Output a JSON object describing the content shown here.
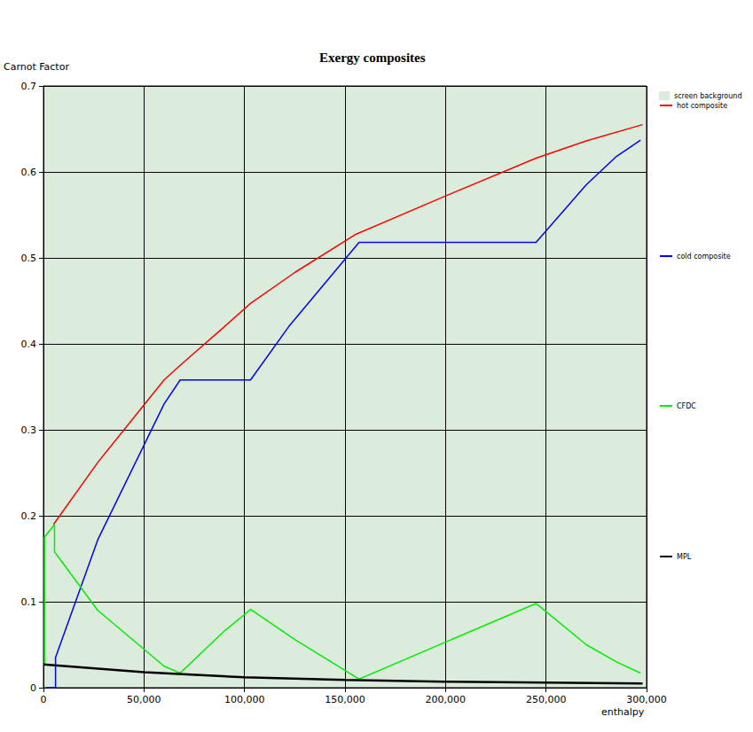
{
  "chart_data": {
    "type": "line",
    "title": "Exergy composites",
    "y_label": "Carnot Factor",
    "x_label": "enthalpy",
    "xlim": [
      0,
      300000
    ],
    "xticks": [
      0,
      {
        "value": 50000,
        "label": "50,000"
      },
      {
        "value": 100000,
        "label": "100,000"
      },
      {
        "value": 150000,
        "label": "150,000"
      },
      {
        "value": 200000,
        "label": "200,000"
      },
      {
        "value": 250000,
        "label": "250,000"
      },
      {
        "value": 300000,
        "label": "300,000"
      }
    ],
    "ylim": [
      0,
      0.7
    ],
    "yticks": [
      0,
      0.1,
      0.2,
      0.3,
      0.4,
      0.5,
      0.6,
      0.7
    ],
    "grid": true,
    "legend": "right",
    "series": [
      {
        "name": "screen background",
        "color": "#dcecdc",
        "type": "background"
      },
      {
        "name": "hot composite",
        "color": "#ff0000",
        "values": [
          [
            5000,
            0.19
          ],
          [
            27000,
            0.262
          ],
          [
            60000,
            0.358
          ],
          [
            68000,
            0.375
          ],
          [
            90000,
            0.42
          ],
          [
            103000,
            0.447
          ],
          [
            125000,
            0.483
          ],
          [
            155000,
            0.527
          ],
          [
            200000,
            0.572
          ],
          [
            245000,
            0.616
          ],
          [
            270000,
            0.636
          ],
          [
            298000,
            0.655
          ]
        ]
      },
      {
        "name": "cold composite",
        "color": "#0000ff",
        "values": [
          [
            1500,
            0
          ],
          [
            6000,
            0
          ],
          [
            6000,
            0.035
          ],
          [
            27000,
            0.172
          ],
          [
            60000,
            0.33
          ],
          [
            68000,
            0.358
          ],
          [
            103000,
            0.358
          ],
          [
            122000,
            0.42
          ],
          [
            157000,
            0.518
          ],
          [
            245000,
            0.518
          ],
          [
            270000,
            0.585
          ],
          [
            285000,
            0.618
          ],
          [
            297000,
            0.637
          ]
        ]
      },
      {
        "name": "CFDC",
        "color": "#00ee00",
        "values": [
          [
            500,
            0.027
          ],
          [
            500,
            0.175
          ],
          [
            5500,
            0.19
          ],
          [
            5500,
            0.158
          ],
          [
            27000,
            0.09
          ],
          [
            60000,
            0.025
          ],
          [
            68000,
            0.017
          ],
          [
            90000,
            0.066
          ],
          [
            103000,
            0.091
          ],
          [
            125000,
            0.056
          ],
          [
            157000,
            0.01
          ],
          [
            245000,
            0.098
          ],
          [
            270000,
            0.05
          ],
          [
            285000,
            0.03
          ],
          [
            297000,
            0.017
          ]
        ]
      },
      {
        "name": "MPL",
        "color": "#000000",
        "values": [
          [
            0,
            0.027
          ],
          [
            50000,
            0.018
          ],
          [
            100000,
            0.012
          ],
          [
            150000,
            0.009
          ],
          [
            200000,
            0.007
          ],
          [
            250000,
            0.006
          ],
          [
            298000,
            0.005
          ]
        ]
      }
    ]
  }
}
